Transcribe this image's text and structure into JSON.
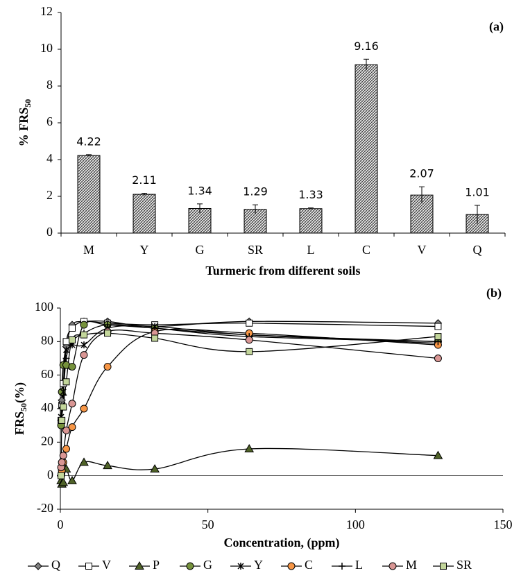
{
  "chart_data": [
    {
      "type": "bar",
      "annotation": "(a)",
      "x_label": "Turmeric from different soils",
      "y_label": {
        "text": "% FRS",
        "sub": "50"
      },
      "categories": [
        "M",
        "Y",
        "G",
        "SR",
        "L",
        "C",
        "V",
        "Q"
      ],
      "values": [
        4.22,
        2.11,
        1.34,
        1.29,
        1.33,
        9.16,
        2.07,
        1.01
      ],
      "errors": [
        0.05,
        0.06,
        0.25,
        0.25,
        0.04,
        0.3,
        0.45,
        0.5
      ],
      "color": "#000000",
      "ylim": [
        0,
        12
      ],
      "yticks": [
        0,
        2,
        4,
        6,
        8,
        10,
        12
      ]
    },
    {
      "type": "line",
      "smooth": true,
      "annotation": "(b)",
      "x_label": "Concentration, (ppm)",
      "y_label": {
        "text": "FRS",
        "sub": "50",
        "after": "(%)"
      },
      "x": [
        0.25,
        0.5,
        1,
        2,
        4,
        8,
        16,
        32,
        64,
        128
      ],
      "series": [
        {
          "name": "Q",
          "color": "#808080",
          "marker": "diamond",
          "values": [
            33,
            45,
            66,
            77,
            90,
            92,
            92,
            89,
            92,
            91
          ]
        },
        {
          "name": "V",
          "color": "#ffffff",
          "marker": "square",
          "values": [
            33,
            42,
            55,
            80,
            88,
            92,
            91,
            90,
            91,
            89
          ]
        },
        {
          "name": "P",
          "color": "#4f6228",
          "marker": "triangle",
          "values": [
            -3,
            -5,
            -4,
            4,
            -3,
            8,
            6,
            4,
            16,
            12
          ]
        },
        {
          "name": "G",
          "color": "#76923c",
          "marker": "circle",
          "values": [
            30,
            50,
            66,
            66,
            65,
            90,
            90,
            88,
            84,
            80
          ]
        },
        {
          "name": "Y",
          "color": "#000000",
          "marker": "star",
          "values": [
            35,
            42,
            50,
            75,
            78,
            78,
            88,
            89,
            84,
            79
          ]
        },
        {
          "name": "C",
          "color": "#f79646",
          "marker": "circle",
          "values": [
            0,
            3,
            8,
            16,
            29,
            40,
            65,
            86,
            85,
            78
          ]
        },
        {
          "name": "L",
          "color": "#000000",
          "marker": "plus",
          "values": [
            33,
            40,
            48,
            70,
            80,
            85,
            90,
            88,
            83,
            80
          ]
        },
        {
          "name": "M",
          "color": "#d99694",
          "marker": "circle",
          "values": [
            5,
            8,
            12,
            27,
            43,
            72,
            86,
            85,
            81,
            70
          ]
        },
        {
          "name": "SR",
          "color": "#c3d69b",
          "marker": "square",
          "values": [
            0,
            33,
            41,
            56,
            81,
            84,
            85,
            82,
            74,
            83
          ]
        }
      ],
      "xlim": [
        0,
        150
      ],
      "xticks": [
        0,
        50,
        100,
        150
      ],
      "ylim": [
        -20,
        100
      ],
      "yticks": [
        -20,
        0,
        20,
        40,
        60,
        80,
        100
      ]
    }
  ]
}
